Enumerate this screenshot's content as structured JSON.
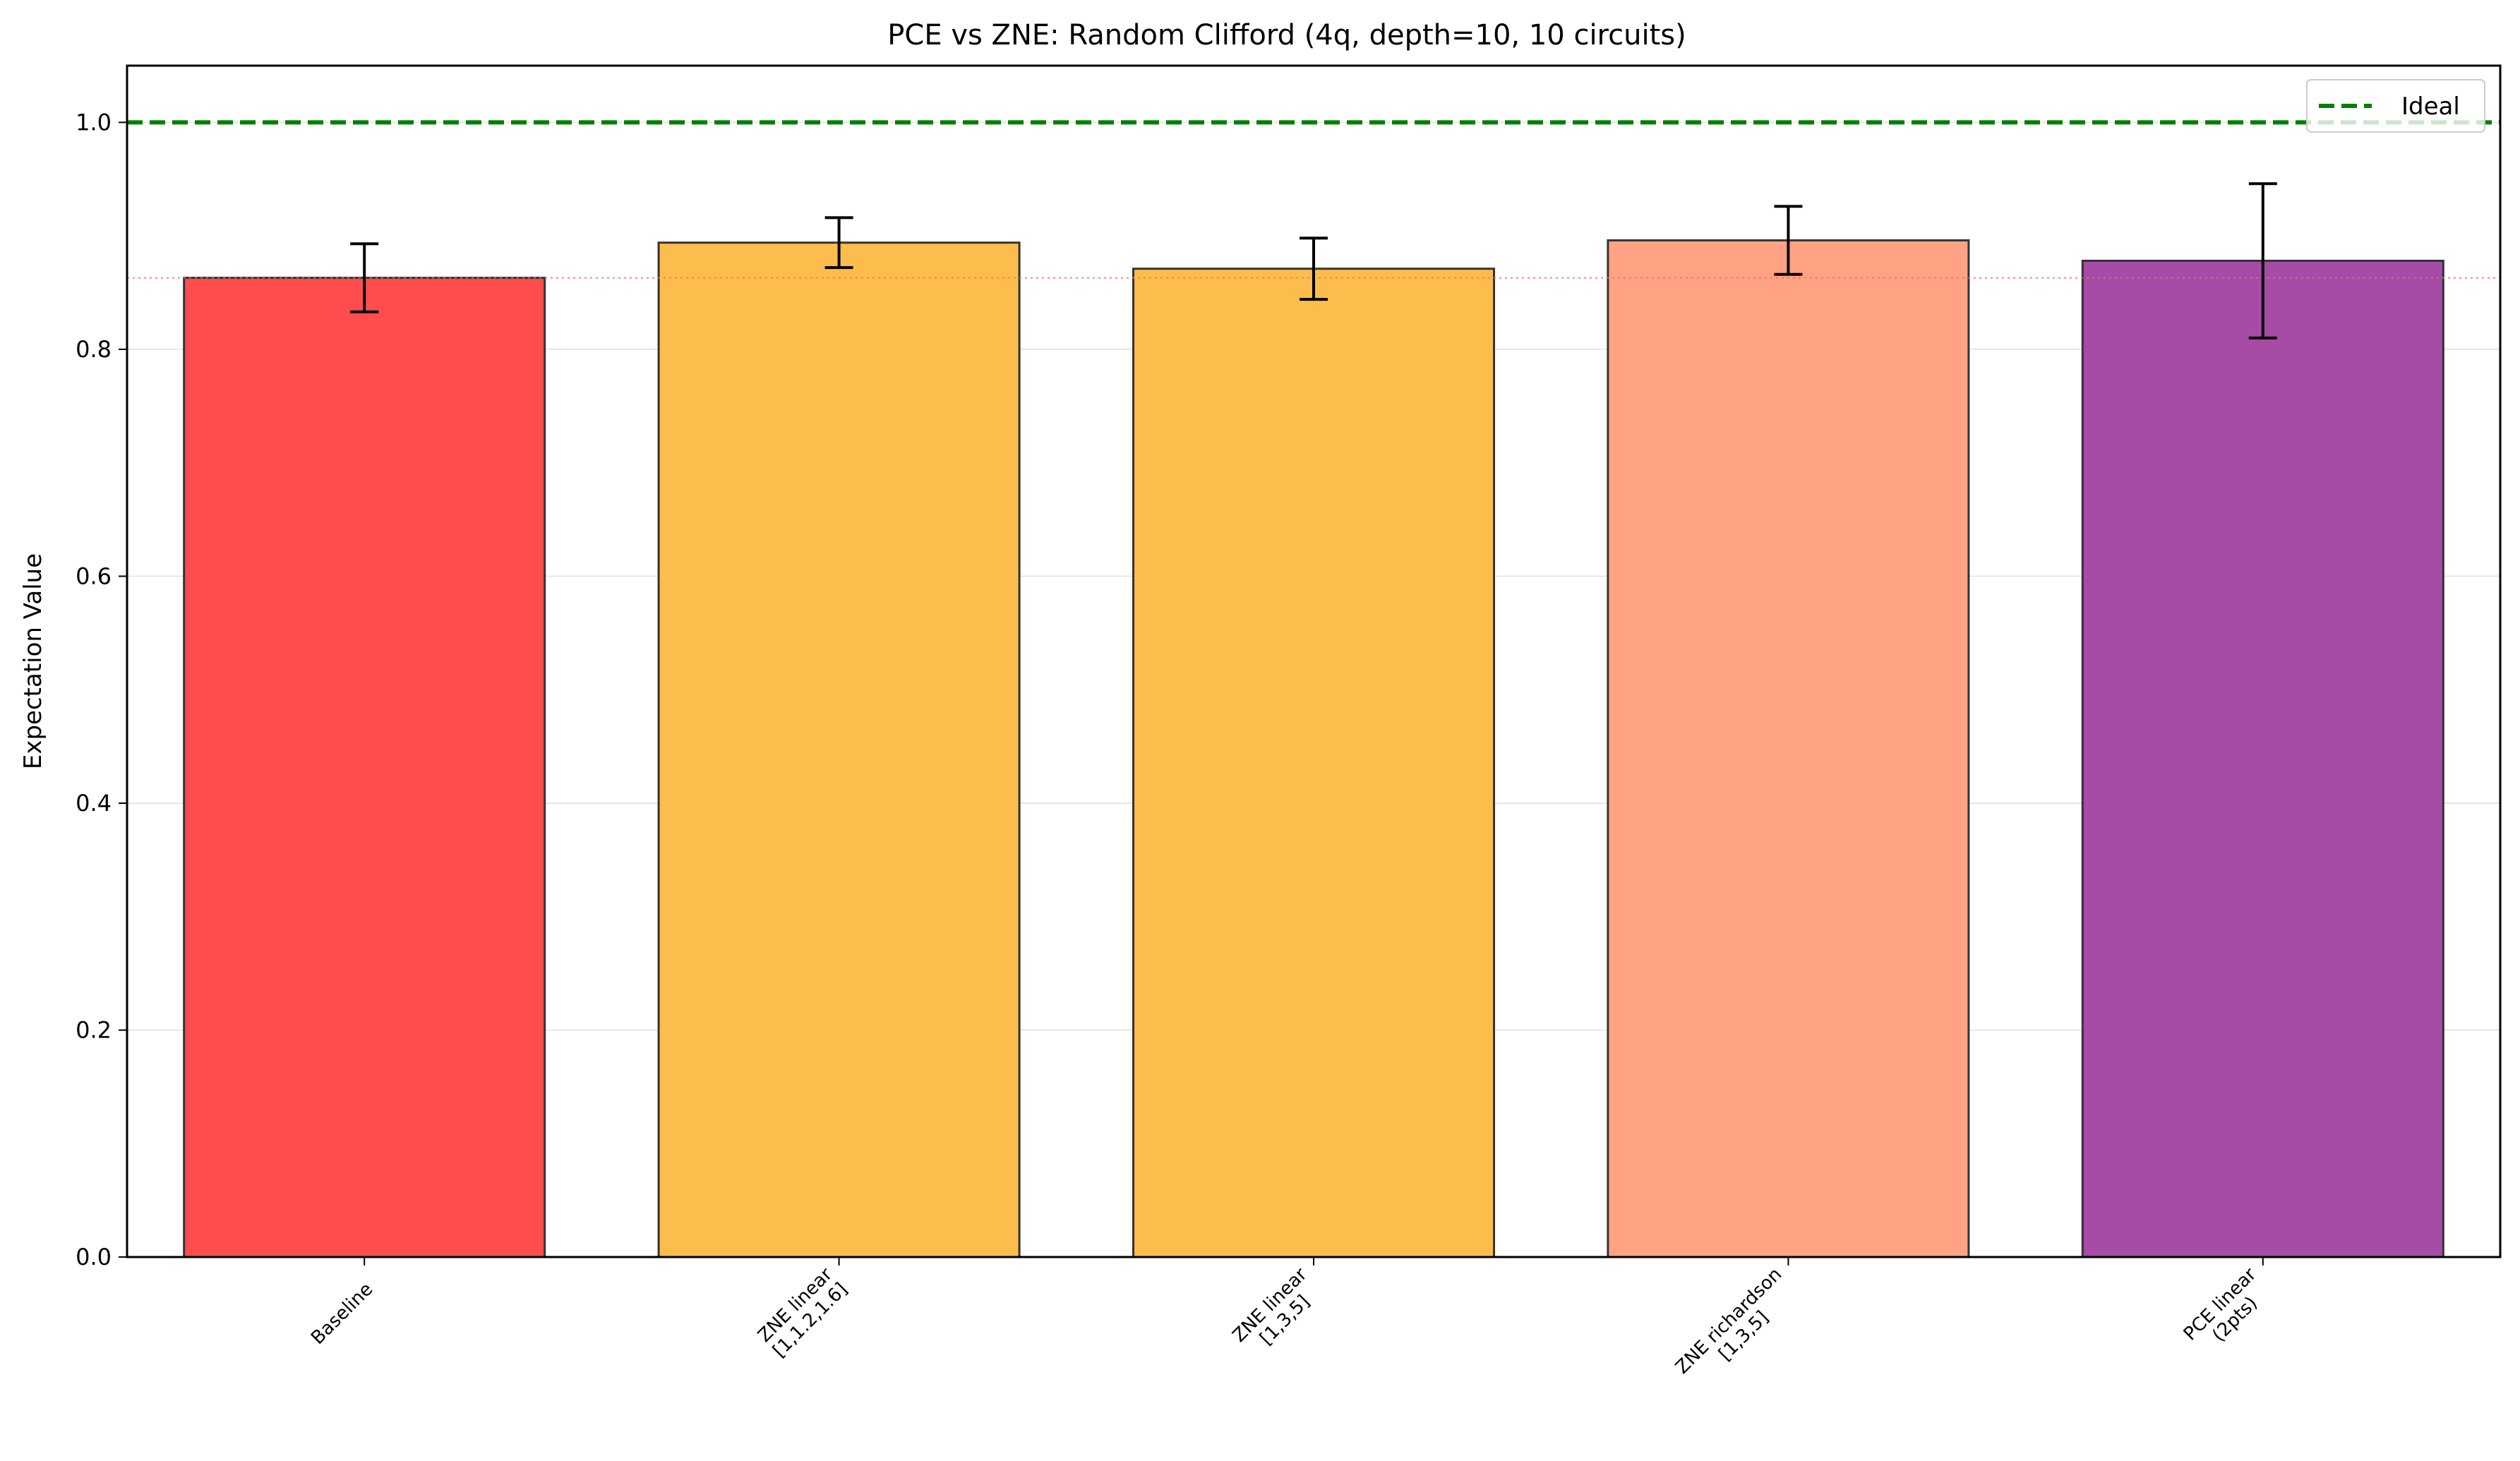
{
  "chart_data": {
    "type": "bar",
    "title": "PCE vs ZNE: Random Clifford (4q, depth=10, 10 circuits)",
    "xlabel": "",
    "ylabel": "Expectation Value",
    "ylim": [
      0,
      1.05
    ],
    "yticks": [
      0.0,
      0.2,
      0.4,
      0.6,
      0.8,
      1.0
    ],
    "ytick_labels": [
      "0.0",
      "0.2",
      "0.4",
      "0.6",
      "0.8",
      "1.0"
    ],
    "grid": "y",
    "legend": {
      "placement": "top-right",
      "entries": [
        {
          "label": "Ideal",
          "style": "dashed",
          "color": "#008000"
        }
      ]
    },
    "categories": [
      [
        "Baseline"
      ],
      [
        "ZNE linear",
        "[1,1.2,1.6]"
      ],
      [
        "ZNE linear",
        "[1,3,5]"
      ],
      [
        "ZNE richardson",
        "[1,3,5]"
      ],
      [
        "PCE linear",
        "(2pts)"
      ]
    ],
    "values": [
      0.863,
      0.894,
      0.871,
      0.896,
      0.878
    ],
    "errors": [
      0.03,
      0.022,
      0.027,
      0.03,
      0.068
    ],
    "colors": [
      "#ff4d4d",
      "#fdbd4d",
      "#fdbd4d",
      "#ffa384",
      "#a64ca6"
    ],
    "reference_lines": [
      {
        "name": "Ideal",
        "value": 1.0,
        "style": "dashed",
        "color": "#008000"
      },
      {
        "value": 0.863,
        "style": "dotted",
        "color": "#ff6666"
      }
    ]
  }
}
